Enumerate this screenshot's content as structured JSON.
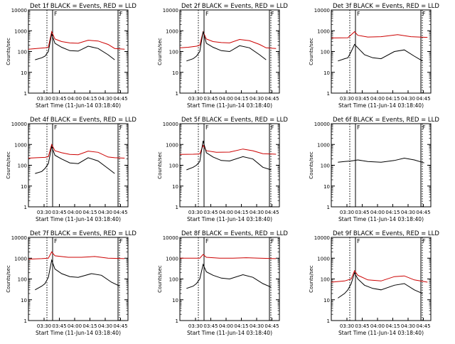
{
  "chart_data": [
    {
      "type": "line",
      "title": "Det 1f BLACK = Events, RED = LLD",
      "ylabel": "Counts/sec",
      "xlabel": "Start Time (11-Jun-14 03:18:40)",
      "yscale": "log",
      "ylim": [
        1,
        10000
      ],
      "yticks": [
        "1",
        "10",
        "100",
        "1000",
        "10000"
      ],
      "xticks": [
        "03:30",
        "03:45",
        "04:00",
        "04:15",
        "04:30",
        "04:45"
      ],
      "marker": "F",
      "series": [
        {
          "color": "#cc0000",
          "points": [
            [
              0,
              130
            ],
            [
              5,
              140
            ],
            [
              10,
              150
            ],
            [
              12,
              160
            ],
            [
              14,
              900
            ],
            [
              16,
              400
            ],
            [
              20,
              300
            ],
            [
              25,
              260
            ],
            [
              30,
              250
            ],
            [
              36,
              350
            ],
            [
              42,
              320
            ],
            [
              48,
              220
            ],
            [
              52,
              140
            ],
            [
              58,
              130
            ]
          ]
        },
        {
          "color": "#000000",
          "points": [
            [
              4,
              40
            ],
            [
              8,
              50
            ],
            [
              10,
              60
            ],
            [
              12,
              100
            ],
            [
              14,
              700
            ],
            [
              16,
              250
            ],
            [
              20,
              160
            ],
            [
              25,
              110
            ],
            [
              30,
              105
            ],
            [
              36,
              180
            ],
            [
              42,
              140
            ],
            [
              48,
              70
            ],
            [
              52,
              40
            ]
          ]
        }
      ]
    },
    {
      "type": "line",
      "title": "Det 2f BLACK = Events, RED = LLD",
      "ylabel": "Counts/sec",
      "xlabel": "Start Time (11-Jun-14 03:18:40)",
      "yscale": "log",
      "ylim": [
        1,
        10000
      ],
      "yticks": [
        "1",
        "10",
        "100",
        "1000",
        "10000"
      ],
      "xticks": [
        "03:30",
        "03:45",
        "04:00",
        "04:15",
        "04:30",
        "04:45"
      ],
      "marker": "F",
      "series": [
        {
          "color": "#cc0000",
          "points": [
            [
              0,
              150
            ],
            [
              5,
              160
            ],
            [
              10,
              180
            ],
            [
              12,
              200
            ],
            [
              14,
              900
            ],
            [
              16,
              400
            ],
            [
              20,
              300
            ],
            [
              25,
              270
            ],
            [
              30,
              260
            ],
            [
              36,
              380
            ],
            [
              42,
              330
            ],
            [
              48,
              220
            ],
            [
              52,
              150
            ],
            [
              58,
              140
            ]
          ]
        },
        {
          "color": "#000000",
          "points": [
            [
              4,
              35
            ],
            [
              8,
              45
            ],
            [
              10,
              60
            ],
            [
              12,
              100
            ],
            [
              14,
              900
            ],
            [
              16,
              250
            ],
            [
              20,
              160
            ],
            [
              25,
              110
            ],
            [
              30,
              100
            ],
            [
              36,
              190
            ],
            [
              42,
              150
            ],
            [
              48,
              70
            ],
            [
              52,
              40
            ]
          ]
        }
      ]
    },
    {
      "type": "line",
      "title": "Det 3f BLACK = Events, RED = LLD",
      "ylabel": "Counts/sec",
      "xlabel": "Start Time (11-Jun-14 03:18:40)",
      "yscale": "log",
      "ylim": [
        1,
        10000
      ],
      "yticks": [
        "1",
        "10",
        "100",
        "1000",
        "10000"
      ],
      "xticks": [
        "03:30",
        "03:45",
        "04:00",
        "04:15",
        "04:30",
        "04:45"
      ],
      "marker": "F",
      "series": [
        {
          "color": "#cc0000",
          "points": [
            [
              0,
              450
            ],
            [
              10,
              460
            ],
            [
              14,
              900
            ],
            [
              16,
              600
            ],
            [
              22,
              500
            ],
            [
              30,
              520
            ],
            [
              40,
              650
            ],
            [
              48,
              520
            ],
            [
              58,
              480
            ]
          ]
        },
        {
          "color": "#000000",
          "points": [
            [
              4,
              35
            ],
            [
              8,
              45
            ],
            [
              10,
              50
            ],
            [
              12,
              100
            ],
            [
              14,
              220
            ],
            [
              16,
              150
            ],
            [
              20,
              70
            ],
            [
              25,
              50
            ],
            [
              30,
              45
            ],
            [
              38,
              100
            ],
            [
              44,
              120
            ],
            [
              50,
              60
            ],
            [
              55,
              35
            ]
          ]
        }
      ]
    },
    {
      "type": "line",
      "title": "Det 4f BLACK = Events, RED = LLD",
      "ylabel": "Counts/sec",
      "xlabel": "Start Time (11-Jun-14 03:18:40)",
      "yscale": "log",
      "ylim": [
        1,
        10000
      ],
      "yticks": [
        "1",
        "10",
        "100",
        "1000",
        "10000"
      ],
      "xticks": [
        "03:30",
        "03:45",
        "04:00",
        "04:15",
        "04:30",
        "04:45"
      ],
      "marker": "F",
      "series": [
        {
          "color": "#cc0000",
          "points": [
            [
              0,
              220
            ],
            [
              5,
              230
            ],
            [
              10,
              240
            ],
            [
              12,
              260
            ],
            [
              14,
              1000
            ],
            [
              16,
              500
            ],
            [
              20,
              400
            ],
            [
              25,
              330
            ],
            [
              30,
              320
            ],
            [
              36,
              480
            ],
            [
              42,
              420
            ],
            [
              48,
              250
            ],
            [
              52,
              230
            ],
            [
              58,
              220
            ]
          ]
        },
        {
          "color": "#000000",
          "points": [
            [
              4,
              40
            ],
            [
              8,
              50
            ],
            [
              10,
              70
            ],
            [
              12,
              120
            ],
            [
              14,
              800
            ],
            [
              16,
              300
            ],
            [
              20,
              200
            ],
            [
              25,
              130
            ],
            [
              30,
              120
            ],
            [
              36,
              230
            ],
            [
              42,
              160
            ],
            [
              48,
              70
            ],
            [
              52,
              40
            ]
          ]
        }
      ]
    },
    {
      "type": "line",
      "title": "Det 5f BLACK = Events, RED = LLD",
      "ylabel": "Counts/sec",
      "xlabel": "Start Time (11-Jun-14 03:18:40)",
      "yscale": "log",
      "ylim": [
        1,
        10000
      ],
      "yticks": [
        "1",
        "10",
        "100",
        "1000",
        "10000"
      ],
      "xticks": [
        "03:30",
        "03:45",
        "04:00",
        "04:15",
        "04:30",
        "04:45"
      ],
      "marker": "F",
      "series": [
        {
          "color": "#cc0000",
          "points": [
            [
              0,
              330
            ],
            [
              8,
              340
            ],
            [
              12,
              350
            ],
            [
              14,
              900
            ],
            [
              16,
              500
            ],
            [
              22,
              420
            ],
            [
              30,
              430
            ],
            [
              38,
              600
            ],
            [
              44,
              500
            ],
            [
              50,
              360
            ],
            [
              58,
              340
            ]
          ]
        },
        {
          "color": "#000000",
          "points": [
            [
              4,
              60
            ],
            [
              8,
              80
            ],
            [
              10,
              100
            ],
            [
              12,
              150
            ],
            [
              14,
              1500
            ],
            [
              16,
              400
            ],
            [
              20,
              250
            ],
            [
              25,
              170
            ],
            [
              30,
              160
            ],
            [
              38,
              260
            ],
            [
              44,
              200
            ],
            [
              50,
              80
            ],
            [
              55,
              60
            ]
          ]
        }
      ]
    },
    {
      "type": "line",
      "title": "Det 6f BLACK = Events, RED = LLD",
      "ylabel": "Counts/sec",
      "xlabel": "Start Time (11-Jun-14 03:18:40)",
      "yscale": "log",
      "ylim": [
        1,
        10000
      ],
      "yticks": [
        "1",
        "10",
        "100",
        "1000",
        "10000"
      ],
      "xticks": [
        "03:30",
        "03:45",
        "04:00",
        "04:15",
        "04:30",
        "04:45"
      ],
      "marker": "F",
      "series": [
        {
          "color": "#000000",
          "points": [
            [
              4,
              140
            ],
            [
              8,
              150
            ],
            [
              12,
              160
            ],
            [
              16,
              180
            ],
            [
              22,
              150
            ],
            [
              30,
              140
            ],
            [
              38,
              170
            ],
            [
              44,
              220
            ],
            [
              50,
              180
            ],
            [
              56,
              130
            ]
          ]
        }
      ]
    },
    {
      "type": "line",
      "title": "Det 7f BLACK = Events, RED = LLD",
      "ylabel": "Counts/sec",
      "xlabel": "Start Time (11-Jun-14 03:18:40)",
      "yscale": "log",
      "ylim": [
        1,
        10000
      ],
      "yticks": [
        "1",
        "10",
        "100",
        "1000",
        "10000"
      ],
      "xticks": [
        "03:30",
        "03:45",
        "04:00",
        "04:15",
        "04:30",
        "04:45"
      ],
      "marker": "F",
      "series": [
        {
          "color": "#cc0000",
          "points": [
            [
              0,
              900
            ],
            [
              8,
              950
            ],
            [
              12,
              1000
            ],
            [
              14,
              2000
            ],
            [
              16,
              1300
            ],
            [
              24,
              1100
            ],
            [
              32,
              1100
            ],
            [
              40,
              1200
            ],
            [
              48,
              1000
            ],
            [
              58,
              950
            ]
          ]
        },
        {
          "color": "#000000",
          "points": [
            [
              4,
              30
            ],
            [
              8,
              45
            ],
            [
              10,
              60
            ],
            [
              12,
              120
            ],
            [
              14,
              800
            ],
            [
              16,
              300
            ],
            [
              20,
              180
            ],
            [
              25,
              130
            ],
            [
              30,
              120
            ],
            [
              38,
              180
            ],
            [
              44,
              150
            ],
            [
              50,
              70
            ],
            [
              55,
              45
            ]
          ]
        }
      ]
    },
    {
      "type": "line",
      "title": "Det 8f BLACK = Events, RED = LLD",
      "ylabel": "Counts/sec",
      "xlabel": "Start Time (11-Jun-14 03:18:40)",
      "yscale": "log",
      "ylim": [
        1,
        10000
      ],
      "yticks": [
        "1",
        "10",
        "100",
        "1000",
        "10000"
      ],
      "xticks": [
        "03:30",
        "03:45",
        "04:00",
        "04:15",
        "04:30",
        "04:45"
      ],
      "marker": "F",
      "series": [
        {
          "color": "#cc0000",
          "points": [
            [
              0,
              1000
            ],
            [
              8,
              1000
            ],
            [
              12,
              1000
            ],
            [
              14,
              1500
            ],
            [
              16,
              1100
            ],
            [
              24,
              1000
            ],
            [
              32,
              1000
            ],
            [
              40,
              1050
            ],
            [
              48,
              1000
            ],
            [
              58,
              950
            ]
          ]
        },
        {
          "color": "#000000",
          "points": [
            [
              4,
              35
            ],
            [
              8,
              45
            ],
            [
              10,
              60
            ],
            [
              12,
              100
            ],
            [
              14,
              500
            ],
            [
              16,
              220
            ],
            [
              20,
              150
            ],
            [
              25,
              110
            ],
            [
              30,
              100
            ],
            [
              38,
              160
            ],
            [
              44,
              120
            ],
            [
              50,
              60
            ],
            [
              55,
              40
            ]
          ]
        }
      ]
    },
    {
      "type": "line",
      "title": "Det 9f BLACK = Events, RED = LLD",
      "ylabel": "Counts/sec",
      "xlabel": "Start Time (11-Jun-14 03:18:40)",
      "yscale": "log",
      "ylim": [
        1,
        10000
      ],
      "yticks": [
        "1",
        "10",
        "100",
        "1000",
        "10000"
      ],
      "xticks": [
        "03:30",
        "03:45",
        "04:00",
        "04:15",
        "04:30",
        "04:45"
      ],
      "marker": "F",
      "series": [
        {
          "color": "#cc0000",
          "points": [
            [
              0,
              70
            ],
            [
              8,
              80
            ],
            [
              12,
              100
            ],
            [
              14,
              250
            ],
            [
              16,
              150
            ],
            [
              22,
              90
            ],
            [
              30,
              80
            ],
            [
              38,
              130
            ],
            [
              44,
              140
            ],
            [
              50,
              90
            ],
            [
              58,
              70
            ]
          ]
        },
        {
          "color": "#000000",
          "points": [
            [
              4,
              12
            ],
            [
              8,
              20
            ],
            [
              10,
              30
            ],
            [
              12,
              60
            ],
            [
              14,
              200
            ],
            [
              16,
              100
            ],
            [
              20,
              50
            ],
            [
              25,
              35
            ],
            [
              30,
              30
            ],
            [
              38,
              50
            ],
            [
              44,
              60
            ],
            [
              50,
              30
            ],
            [
              55,
              20
            ]
          ]
        }
      ]
    }
  ]
}
